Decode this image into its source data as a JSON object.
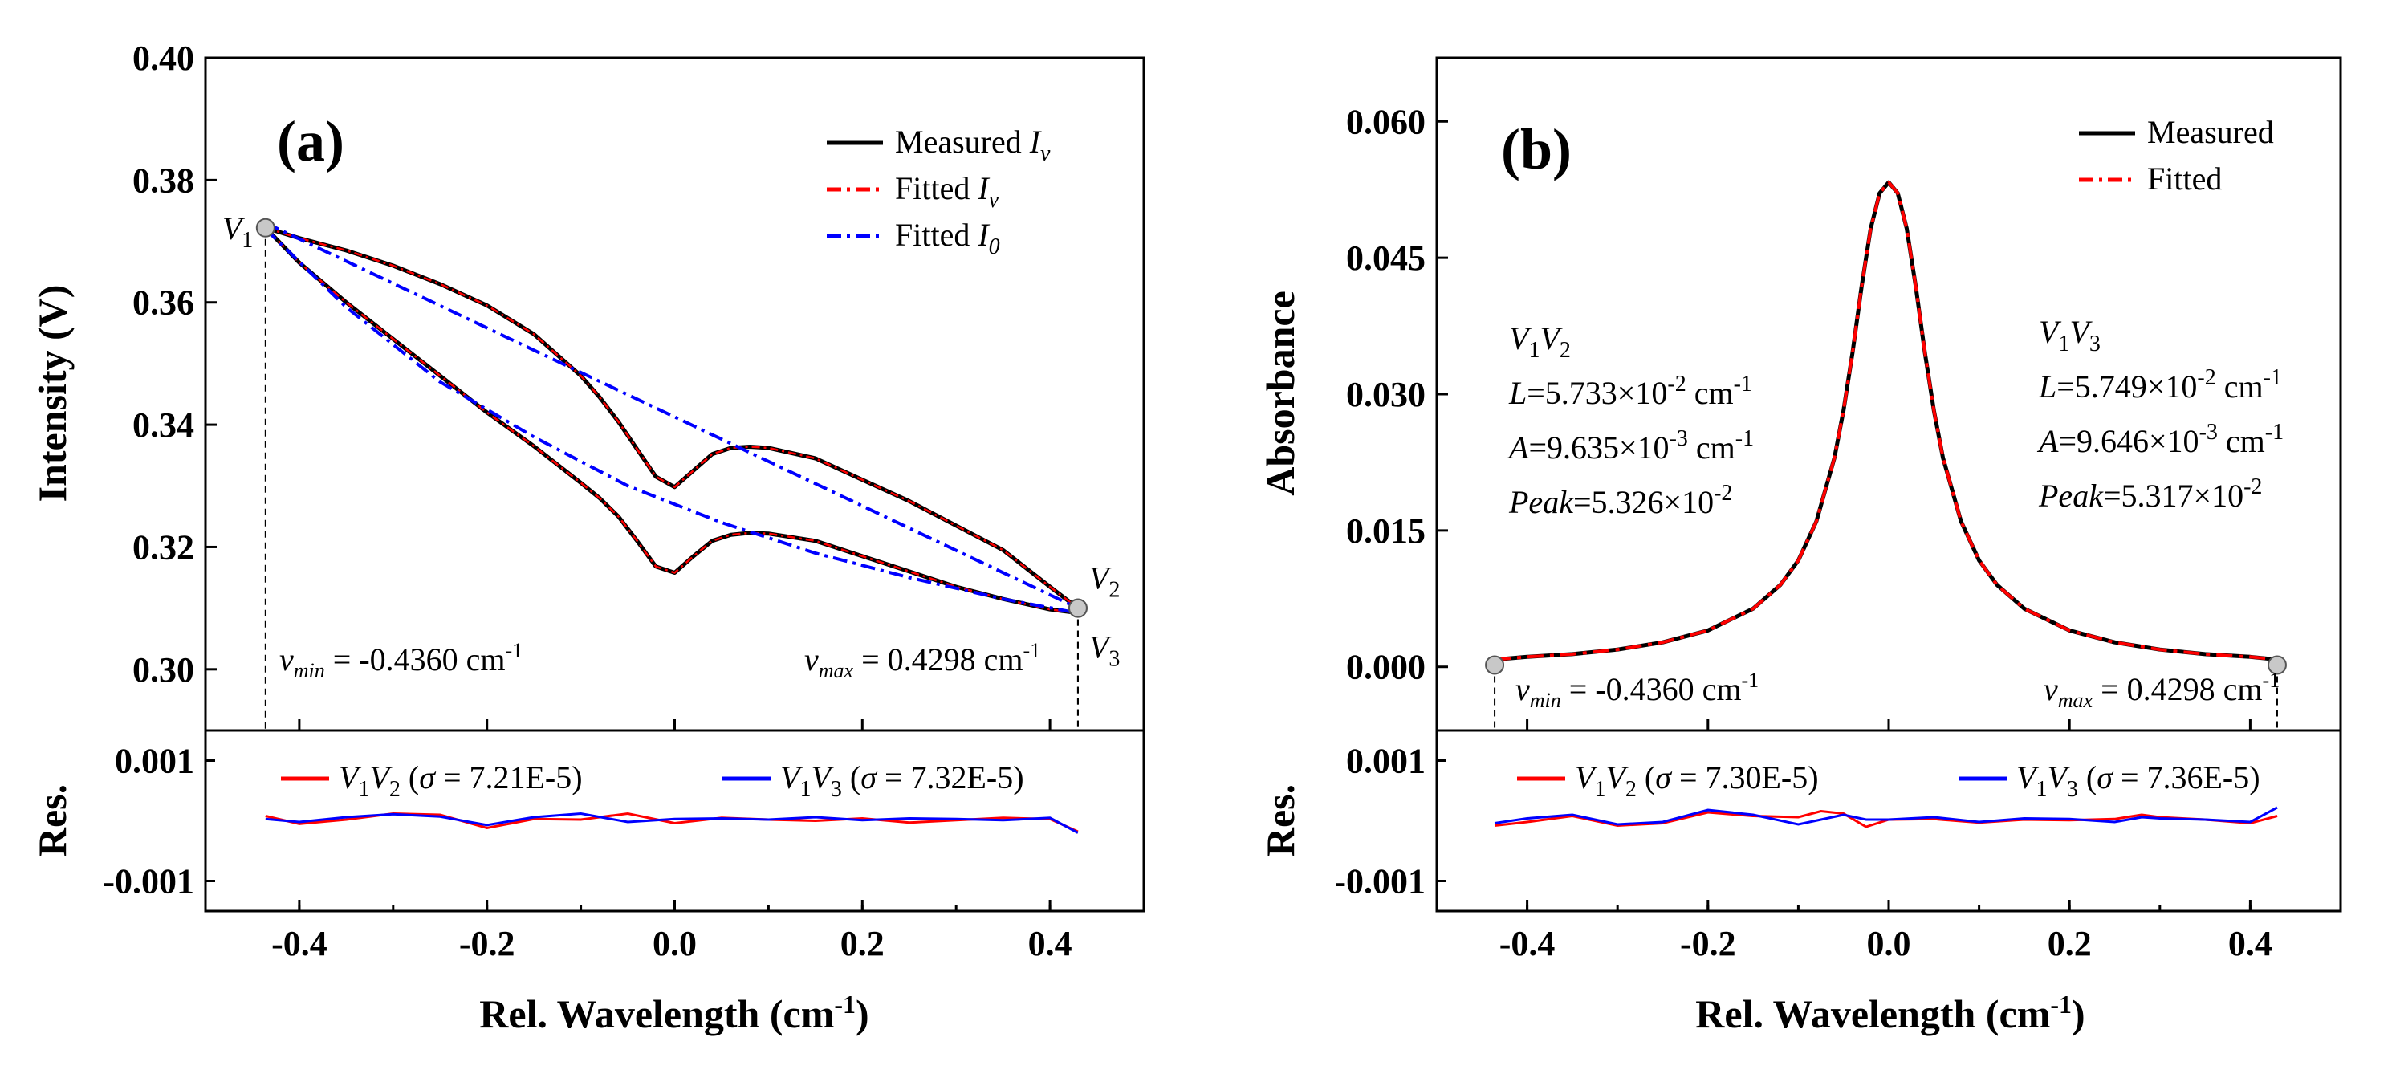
{
  "chart_data": [
    {
      "panel": "(a)",
      "type": "line",
      "xlabel": "Rel. Wavelength (cm-1)",
      "ylabel": "Intensity (V)",
      "xlim": [
        -0.5,
        0.5
      ],
      "ylim": [
        0.29,
        0.4
      ],
      "xticks": [
        -0.4,
        -0.2,
        0.0,
        0.2,
        0.4
      ],
      "xtick_labels": [
        "-0.4",
        "-0.2",
        "0.0",
        "0.2",
        "0.4"
      ],
      "yticks": [
        0.3,
        0.32,
        0.34,
        0.36,
        0.38,
        0.4
      ],
      "ytick_labels": [
        "0.30",
        "0.32",
        "0.34",
        "0.36",
        "0.38",
        "0.40"
      ],
      "legend": {
        "position": "top-right",
        "entries": [
          {
            "label": "Measured",
            "italic": "I",
            "sub": "v",
            "color": "#000000",
            "style": "solid"
          },
          {
            "label": "Fitted",
            "italic": "I",
            "sub": "v",
            "color": "#ff0000",
            "style": "dash-dot"
          },
          {
            "label": "Fitted",
            "italic": "I",
            "sub": "0",
            "color": "#0000ff",
            "style": "dash-dot"
          }
        ]
      },
      "series": [
        {
          "name": "Measured Iv (V1V2 ramp)",
          "color": "#000000",
          "x": [
            -0.436,
            -0.4,
            -0.35,
            -0.3,
            -0.25,
            -0.2,
            -0.15,
            -0.1,
            -0.08,
            -0.06,
            -0.04,
            -0.02,
            0.0,
            0.02,
            0.04,
            0.06,
            0.08,
            0.1,
            0.15,
            0.2,
            0.25,
            0.3,
            0.35,
            0.4,
            0.4298
          ],
          "y": [
            0.3722,
            0.3705,
            0.3685,
            0.366,
            0.363,
            0.3595,
            0.3548,
            0.348,
            0.3445,
            0.3405,
            0.336,
            0.3315,
            0.3298,
            0.3325,
            0.3352,
            0.3362,
            0.3364,
            0.3362,
            0.3345,
            0.331,
            0.3275,
            0.3235,
            0.3195,
            0.3135,
            0.31
          ]
        },
        {
          "name": "Measured Iv (V1V3 ramp)",
          "color": "#000000",
          "x": [
            -0.436,
            -0.4,
            -0.35,
            -0.3,
            -0.25,
            -0.2,
            -0.15,
            -0.1,
            -0.08,
            -0.06,
            -0.04,
            -0.02,
            0.0,
            0.02,
            0.04,
            0.06,
            0.08,
            0.1,
            0.15,
            0.2,
            0.25,
            0.3,
            0.35,
            0.4,
            0.4298
          ],
          "y": [
            0.3722,
            0.3665,
            0.36,
            0.354,
            0.348,
            0.342,
            0.3365,
            0.3305,
            0.328,
            0.325,
            0.321,
            0.3168,
            0.3158,
            0.3185,
            0.321,
            0.322,
            0.3223,
            0.3222,
            0.321,
            0.3185,
            0.316,
            0.3135,
            0.3115,
            0.3098,
            0.3092
          ]
        },
        {
          "name": "Fitted I0 (V1V2)",
          "color": "#0000ff",
          "x": [
            -0.436,
            0.4298
          ],
          "y": [
            0.373,
            0.31
          ]
        },
        {
          "name": "Fitted I0 (V1V3)",
          "color": "#0000ff",
          "x": [
            -0.436,
            -0.35,
            -0.25,
            -0.15,
            -0.05,
            0.05,
            0.15,
            0.25,
            0.35,
            0.4298
          ],
          "y": [
            0.372,
            0.3592,
            0.347,
            0.338,
            0.33,
            0.324,
            0.319,
            0.315,
            0.3115,
            0.3092
          ]
        }
      ],
      "endpoints": [
        {
          "label": "V",
          "sub": "1",
          "x": -0.436,
          "y": 0.3722
        },
        {
          "label": "V",
          "sub": "2",
          "x": 0.4298,
          "y": 0.31
        },
        {
          "label": "V",
          "sub": "3",
          "x": 0.4298,
          "y": 0.31
        }
      ],
      "vmin_text": {
        "pre": "v",
        "sub": "min",
        "post": " =  -0.4360 cm",
        "sup": "-1"
      },
      "vmax_text": {
        "pre": "v",
        "sub": "max",
        "post": " =  0.4298 cm",
        "sup": "-1"
      },
      "residual": {
        "ylabel": "Res.",
        "ylim": [
          -0.0015,
          0.0015
        ],
        "yticks": [
          0.001,
          -0.001
        ],
        "ytick_labels": [
          "0.001",
          "-0.001"
        ],
        "legend": [
          {
            "pre": "V",
            "sub1": "1",
            "mid": "V",
            "sub2": "2",
            "post": " (",
            "sigma": "σ",
            "val": " = 7.21E-5)",
            "color": "#ff0000"
          },
          {
            "pre": "V",
            "sub1": "1",
            "mid": "V",
            "sub2": "3",
            "post": " (",
            "sigma": "σ",
            "val": " = 7.32E-5)",
            "color": "#0000ff"
          }
        ],
        "series": [
          {
            "name": "V1V2",
            "color": "#ff0000",
            "x": [
              -0.436,
              -0.4,
              -0.35,
              -0.3,
              -0.25,
              -0.2,
              -0.15,
              -0.1,
              -0.05,
              0.0,
              0.05,
              0.1,
              0.15,
              0.2,
              0.25,
              0.3,
              0.35,
              0.4,
              0.4298
            ],
            "y": [
              8e-05,
              -5e-05,
              2e-05,
              0.00012,
              0.0001,
              -0.00012,
              3e-05,
              2e-05,
              0.00012,
              -4e-05,
              5e-05,
              2e-05,
              0.0,
              4e-05,
              -3e-05,
              1e-05,
              5e-05,
              3e-05,
              -0.00018
            ]
          },
          {
            "name": "V1V3",
            "color": "#0000ff",
            "x": [
              -0.436,
              -0.4,
              -0.35,
              -0.3,
              -0.25,
              -0.2,
              -0.15,
              -0.1,
              -0.05,
              0.0,
              0.05,
              0.1,
              0.15,
              0.2,
              0.25,
              0.3,
              0.35,
              0.4,
              0.4298
            ],
            "y": [
              3e-05,
              -2e-05,
              6e-05,
              0.00011,
              7e-05,
              -7e-05,
              6e-05,
              0.00012,
              -2e-05,
              3e-05,
              4e-05,
              2e-05,
              6e-05,
              1e-05,
              4e-05,
              3e-05,
              1e-05,
              5e-05,
              -0.0002
            ]
          }
        ]
      }
    },
    {
      "panel": "(b)",
      "type": "line",
      "xlabel": "Rel. Wavelength (cm-1)",
      "ylabel": "Absorbance",
      "xlim": [
        -0.5,
        0.5
      ],
      "ylim": [
        -0.007,
        0.067
      ],
      "xticks": [
        -0.4,
        -0.2,
        0.0,
        0.2,
        0.4
      ],
      "xtick_labels": [
        "-0.4",
        "-0.2",
        "0.0",
        "0.2",
        "0.4"
      ],
      "yticks": [
        0.0,
        0.015,
        0.03,
        0.045,
        0.06
      ],
      "ytick_labels": [
        "0.000",
        "0.015",
        "0.030",
        "0.045",
        "0.060"
      ],
      "legend": {
        "position": "top-right",
        "entries": [
          {
            "label": "Measured",
            "color": "#000000",
            "style": "solid"
          },
          {
            "label": "Fitted",
            "color": "#ff0000",
            "style": "dash-dot"
          }
        ]
      },
      "series": [
        {
          "name": "Measured",
          "color": "#000000",
          "x": [
            -0.436,
            -0.4,
            -0.35,
            -0.3,
            -0.25,
            -0.2,
            -0.15,
            -0.12,
            -0.1,
            -0.08,
            -0.06,
            -0.05,
            -0.04,
            -0.03,
            -0.02,
            -0.01,
            0.0,
            0.01,
            0.02,
            0.03,
            0.04,
            0.05,
            0.06,
            0.08,
            0.1,
            0.12,
            0.15,
            0.2,
            0.25,
            0.3,
            0.35,
            0.4,
            0.4298
          ],
          "y": [
            0.0008,
            0.0011,
            0.0014,
            0.0019,
            0.0027,
            0.004,
            0.0064,
            0.009,
            0.0117,
            0.016,
            0.023,
            0.0282,
            0.0346,
            0.0418,
            0.0482,
            0.0521,
            0.0533,
            0.0521,
            0.0482,
            0.0418,
            0.0346,
            0.0282,
            0.023,
            0.016,
            0.0117,
            0.009,
            0.0064,
            0.004,
            0.0027,
            0.0019,
            0.0014,
            0.0011,
            0.0008
          ]
        },
        {
          "name": "Fitted",
          "color": "#ff0000",
          "x": [
            -0.436,
            -0.4,
            -0.35,
            -0.3,
            -0.25,
            -0.2,
            -0.15,
            -0.12,
            -0.1,
            -0.08,
            -0.06,
            -0.05,
            -0.04,
            -0.03,
            -0.02,
            -0.01,
            0.0,
            0.01,
            0.02,
            0.03,
            0.04,
            0.05,
            0.06,
            0.08,
            0.1,
            0.12,
            0.15,
            0.2,
            0.25,
            0.3,
            0.35,
            0.4,
            0.4298
          ],
          "y": [
            0.0008,
            0.0011,
            0.0014,
            0.0019,
            0.0027,
            0.004,
            0.0064,
            0.009,
            0.0117,
            0.016,
            0.023,
            0.0282,
            0.0346,
            0.0418,
            0.0482,
            0.0521,
            0.0533,
            0.0521,
            0.0482,
            0.0418,
            0.0346,
            0.0282,
            0.023,
            0.016,
            0.0117,
            0.009,
            0.0064,
            0.004,
            0.0027,
            0.0019,
            0.0014,
            0.0011,
            0.0008
          ]
        }
      ],
      "endpoints": [
        {
          "x": -0.436,
          "y": 0.0002
        },
        {
          "x": 0.4298,
          "y": 0.0002
        }
      ],
      "annot_left": {
        "title": {
          "pre": "V",
          "sub1": "1",
          "mid": "V",
          "sub2": "2"
        },
        "L": {
          "name": "L",
          "text": "=5.733×10",
          "exp": "-2",
          "unit": " cm",
          "unit_exp": "-1"
        },
        "A": {
          "name": "A",
          "text": "=9.635×10",
          "exp": "-3",
          "unit": " cm",
          "unit_exp": "-1"
        },
        "Peak": {
          "name": "Peak",
          "text": "=5.326×10",
          "exp": "-2"
        }
      },
      "annot_right": {
        "title": {
          "pre": "V",
          "sub1": "1",
          "mid": "V",
          "sub2": "3"
        },
        "L": {
          "name": "L",
          "text": "=5.749×10",
          "exp": "-2",
          "unit": " cm",
          "unit_exp": "-1"
        },
        "A": {
          "name": "A",
          "text": "=9.646×10",
          "exp": "-3",
          "unit": " cm",
          "unit_exp": "-1"
        },
        "Peak": {
          "name": "Peak",
          "text": "=5.317×10",
          "exp": "-2"
        }
      },
      "vmin_text": {
        "pre": "v",
        "sub": "min",
        "post": " = -0.4360 cm",
        "sup": "-1"
      },
      "vmax_text": {
        "pre": "v",
        "sub": "max",
        "post": " = 0.4298 cm",
        "sup": "-1"
      },
      "residual": {
        "ylabel": "Res.",
        "ylim": [
          -0.0015,
          0.0015
        ],
        "yticks": [
          0.001,
          -0.001
        ],
        "ytick_labels": [
          "0.001",
          "-0.001"
        ],
        "legend": [
          {
            "pre": "V",
            "sub1": "1",
            "mid": "V",
            "sub2": "2",
            "post": " (",
            "sigma": "σ",
            "val": " = 7.30E-5)",
            "color": "#ff0000"
          },
          {
            "pre": "V",
            "sub1": "1",
            "mid": "V",
            "sub2": "3",
            "post": " (",
            "sigma": "σ",
            "val": " = 7.36E-5)",
            "color": "#0000ff"
          }
        ],
        "series": [
          {
            "name": "V1V2",
            "color": "#ff0000",
            "x": [
              -0.436,
              -0.4,
              -0.35,
              -0.3,
              -0.25,
              -0.2,
              -0.15,
              -0.1,
              -0.075,
              -0.05,
              -0.025,
              0.0,
              0.05,
              0.1,
              0.15,
              0.2,
              0.25,
              0.28,
              0.3,
              0.35,
              0.4,
              0.4298
            ],
            "y": [
              -8e-05,
              -2e-05,
              8e-05,
              -8e-05,
              -4e-05,
              0.00014,
              8e-05,
              6e-05,
              0.00016,
              0.00012,
              -0.0001,
              2e-05,
              3e-05,
              -3e-05,
              2e-05,
              1e-05,
              3e-05,
              0.0001,
              6e-05,
              2e-05,
              -4e-05,
              8e-05
            ]
          },
          {
            "name": "V1V3",
            "color": "#0000ff",
            "x": [
              -0.436,
              -0.4,
              -0.35,
              -0.3,
              -0.25,
              -0.2,
              -0.15,
              -0.1,
              -0.075,
              -0.05,
              -0.025,
              0.0,
              0.05,
              0.1,
              0.15,
              0.2,
              0.25,
              0.28,
              0.3,
              0.35,
              0.4,
              0.4298
            ],
            "y": [
              -4e-05,
              4e-05,
              0.0001,
              -6e-05,
              -2e-05,
              0.00018,
              0.0001,
              -6e-05,
              2e-05,
              0.0001,
              2e-05,
              2e-05,
              6e-05,
              -2e-05,
              4e-05,
              3e-05,
              -2e-05,
              6e-05,
              4e-05,
              2e-05,
              -2e-05,
              0.00022
            ]
          }
        ]
      }
    }
  ]
}
